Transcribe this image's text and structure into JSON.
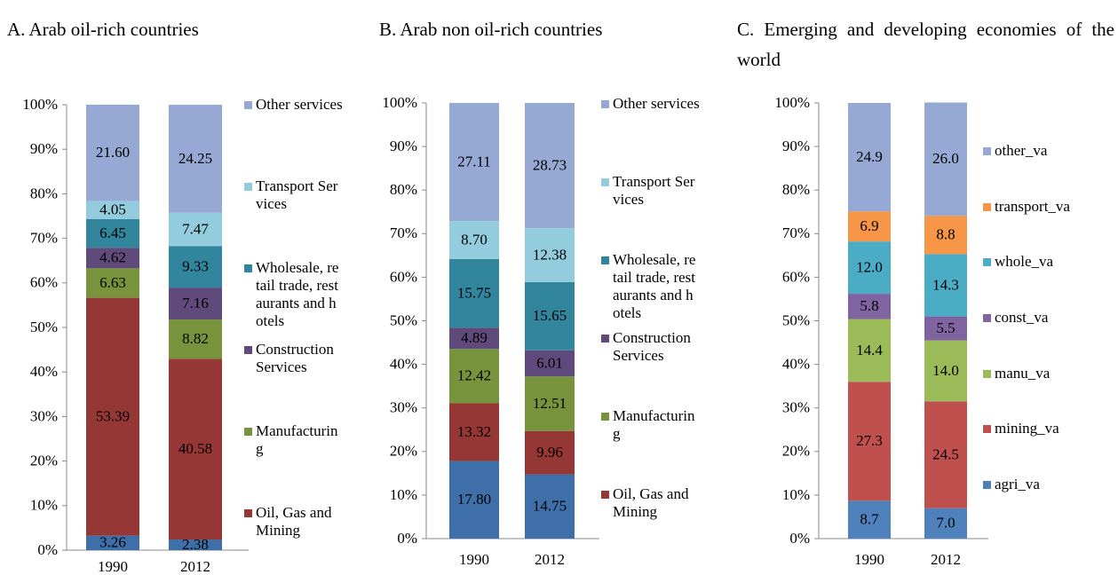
{
  "chart_data": [
    {
      "type": "bar",
      "stacked": true,
      "title": "A. Arab oil-rich countries",
      "categories": [
        "1990",
        "2012"
      ],
      "ylim": [
        0,
        100
      ],
      "yticks": [
        {
          "value": 0,
          "label": "0%"
        },
        {
          "value": 10,
          "label": "10%"
        },
        {
          "value": 20,
          "label": "20%"
        },
        {
          "value": 30,
          "label": "30%"
        },
        {
          "value": 40,
          "label": "40%"
        },
        {
          "value": 50,
          "label": "50%"
        },
        {
          "value": 60,
          "label": "60%"
        },
        {
          "value": 70,
          "label": "70%"
        },
        {
          "value": 80,
          "label": "80%"
        },
        {
          "value": 90,
          "label": "90%"
        },
        {
          "value": 100,
          "label": "100%"
        }
      ],
      "legend": "right",
      "series": [
        {
          "color": "#3f6fa8",
          "values": [
            3.26,
            2.38
          ]
        },
        {
          "name": "Oil, Gas and Mining",
          "color": "#953735",
          "values": [
            53.39,
            40.58
          ]
        },
        {
          "name": "Manufacturing",
          "color": "#77933c",
          "values": [
            6.63,
            8.82
          ]
        },
        {
          "name": "Construction Services",
          "color": "#604a7b",
          "values": [
            4.62,
            7.16
          ]
        },
        {
          "name": "Wholesale, retail trade, restaurants and hotels",
          "color": "#31859c",
          "values": [
            6.45,
            9.33
          ]
        },
        {
          "name": "Transport Services",
          "color": "#93cddd",
          "values": [
            4.05,
            7.47
          ]
        },
        {
          "name": "Other services",
          "color": "#95a9d4",
          "values": [
            21.6,
            24.25
          ],
          "value_labels": [
            "21.60",
            "24.25"
          ]
        }
      ]
    },
    {
      "type": "bar",
      "stacked": true,
      "title": "B. Arab non oil-rich countries",
      "categories": [
        "1990",
        "2012"
      ],
      "ylim": [
        0,
        100
      ],
      "yticks": [
        {
          "value": 0,
          "label": "0%"
        },
        {
          "value": 10,
          "label": "10%"
        },
        {
          "value": 20,
          "label": "20%"
        },
        {
          "value": 30,
          "label": "30%"
        },
        {
          "value": 40,
          "label": "40%"
        },
        {
          "value": 50,
          "label": "50%"
        },
        {
          "value": 60,
          "label": "60%"
        },
        {
          "value": 70,
          "label": "70%"
        },
        {
          "value": 80,
          "label": "80%"
        },
        {
          "value": 90,
          "label": "90%"
        },
        {
          "value": 100,
          "label": "100%"
        }
      ],
      "legend": "right",
      "series": [
        {
          "color": "#3f6fa8",
          "values": [
            17.8,
            14.75
          ],
          "value_labels": [
            "17.80",
            "14.75"
          ]
        },
        {
          "name": "Oil, Gas and Mining",
          "color": "#953735",
          "values": [
            13.32,
            9.96
          ]
        },
        {
          "name": "Manufacturing",
          "color": "#77933c",
          "values": [
            12.42,
            12.51
          ]
        },
        {
          "name": "Construction Services",
          "color": "#604a7b",
          "values": [
            4.89,
            6.01
          ]
        },
        {
          "name": "Wholesale, retail trade, restaurants and hotels",
          "color": "#31859c",
          "values": [
            15.75,
            15.65
          ]
        },
        {
          "name": "Transport Services",
          "color": "#93cddd",
          "values": [
            8.7,
            12.38
          ],
          "value_labels": [
            "8.70",
            "12.38"
          ]
        },
        {
          "name": "Other services",
          "color": "#95a9d4",
          "values": [
            27.11,
            28.73
          ]
        }
      ]
    },
    {
      "type": "bar",
      "stacked": true,
      "title": "C. Emerging and developing economies of the world",
      "categories": [
        "1990",
        "2012"
      ],
      "ylim": [
        0,
        100
      ],
      "yticks": [
        {
          "value": 0,
          "label": "0%"
        },
        {
          "value": 10,
          "label": "10%"
        },
        {
          "value": 20,
          "label": "20%"
        },
        {
          "value": 30,
          "label": "30%"
        },
        {
          "value": 40,
          "label": "40%"
        },
        {
          "value": 50,
          "label": "50%"
        },
        {
          "value": 60,
          "label": "60%"
        },
        {
          "value": 70,
          "label": "70%"
        },
        {
          "value": 80,
          "label": "80%"
        },
        {
          "value": 90,
          "label": "90%"
        },
        {
          "value": 100,
          "label": "100%"
        }
      ],
      "legend": "right",
      "series": [
        {
          "name": "agri_va",
          "color": "#4f81bd",
          "values": [
            8.7,
            7.0
          ],
          "value_labels": [
            "8.7",
            "7.0"
          ]
        },
        {
          "name": "mining_va",
          "color": "#c0504d",
          "values": [
            27.3,
            24.5
          ]
        },
        {
          "name": "manu_va",
          "color": "#9bbb59",
          "values": [
            14.4,
            14.0
          ],
          "value_labels": [
            "14.4",
            "14.0"
          ]
        },
        {
          "name": "const_va",
          "color": "#8064a2",
          "values": [
            5.8,
            5.5
          ]
        },
        {
          "name": "whole_va",
          "color": "#4bacc6",
          "values": [
            12.0,
            14.3
          ],
          "value_labels": [
            "12.0",
            "14.3"
          ]
        },
        {
          "name": "transport_va",
          "color": "#f79646",
          "values": [
            6.9,
            8.8
          ]
        },
        {
          "name": "other_va",
          "color": "#95a9d4",
          "values": [
            24.9,
            26.0
          ],
          "value_labels": [
            "24.9",
            "26.0"
          ]
        }
      ]
    }
  ]
}
